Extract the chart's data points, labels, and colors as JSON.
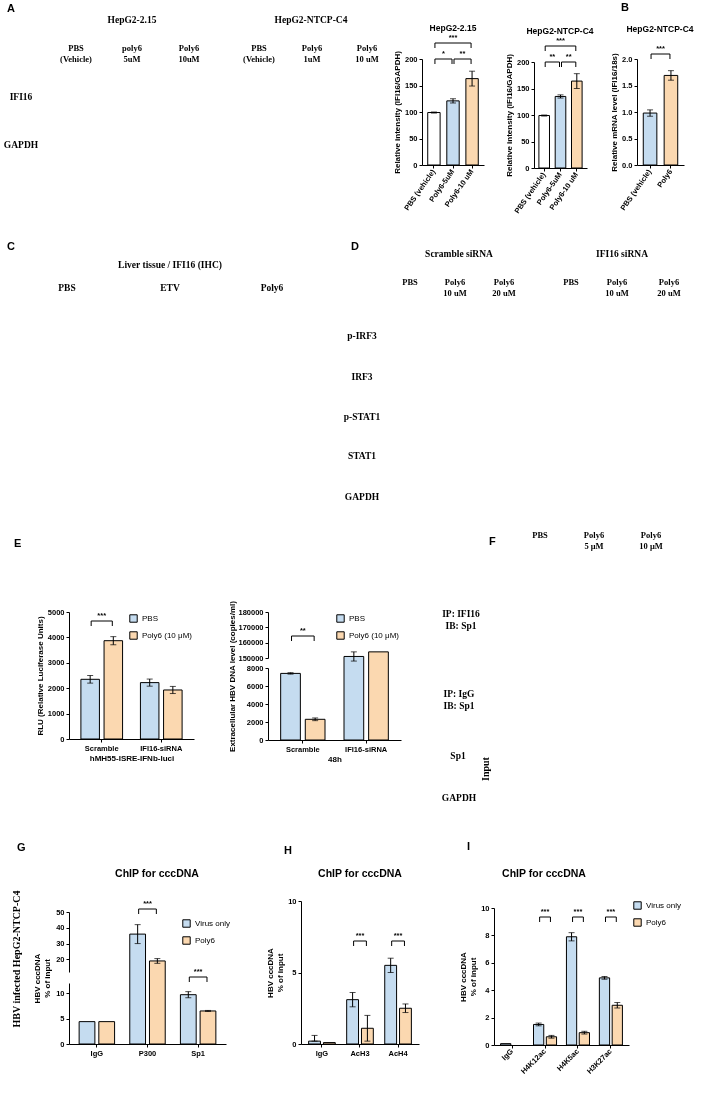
{
  "chart_data": [
    {
      "type": "other",
      "annotations": [
        "A",
        "HepG2-2.15",
        "HepG2-NTCP-C4",
        "PBS\n(Vehicle)",
        "poly6\n5uM",
        "Poly6\n10uM",
        "PBS\n(Vehicle)",
        "Poly6\n1uM",
        "Poly6\n10 uM",
        "IFI16",
        "GAPDH"
      ]
    },
    {
      "type": "bar",
      "title": "HepG2-2.15",
      "ylabel": "Relative intensity (IFI16/GAPDH)",
      "categories": [
        "PBS (vehicle)",
        "Poly6-5uM",
        "Poly6-10 uM"
      ],
      "values": [
        99,
        121,
        163
      ],
      "colors": [
        "#ffffff",
        "#c5dcf0",
        "#fbd8b0"
      ],
      "errors": [
        1,
        4,
        14
      ],
      "ylim": [
        0,
        200
      ],
      "yticks": [
        0,
        50,
        100,
        150,
        200
      ],
      "annotations": [
        "***",
        "*",
        "**"
      ]
    },
    {
      "type": "bar",
      "title": "HepG2-NTCP-C4",
      "ylabel": "Relative intensity (IFI16/GAPDH)",
      "categories": [
        "PBS (vehicle)",
        "Poly6-5uM",
        "Poly6-10 uM"
      ],
      "values": [
        99,
        135,
        164
      ],
      "colors": [
        "#ffffff",
        "#c5dcf0",
        "#fbd8b0"
      ],
      "errors": [
        1,
        3,
        14
      ],
      "ylim": [
        0,
        200
      ],
      "yticks": [
        0,
        50,
        100,
        150,
        200
      ],
      "annotations": [
        "***",
        "**",
        "**"
      ]
    },
    {
      "type": "bar",
      "title": "HepG2-NTCP-C4",
      "ylabel": "Relative mRNA level (IFI16/18s)",
      "categories": [
        "PBS (vehicle)",
        "Poly6"
      ],
      "values": [
        0.98,
        1.69
      ],
      "colors": [
        "#c5dcf0",
        "#fbd8b0"
      ],
      "errors": [
        0.06,
        0.09
      ],
      "ylim": [
        0,
        2
      ],
      "yticks": [
        {
          "value": 0,
          "label": "0.0"
        },
        0.5,
        {
          "value": 1,
          "label": "1.0"
        },
        1.5,
        {
          "value": 2,
          "label": "2.0"
        }
      ],
      "annotations": [
        "B",
        "***"
      ]
    },
    {
      "type": "other",
      "title": "Liver tissue / IFI16 (IHC)",
      "annotations": [
        "C",
        "PBS",
        "ETV",
        "Poly6"
      ]
    },
    {
      "type": "other",
      "annotations": [
        "D",
        "Scramble siRNA",
        "IFI16 siRNA",
        "PBS",
        "Poly6\n10 uM",
        "Poly6\n20 uM",
        "PBS",
        "Poly6\n10 uM",
        "Poly6\n20 uM",
        "p-IRF3",
        "IRF3",
        "p-STAT1",
        "STAT1",
        "GAPDH"
      ]
    },
    {
      "type": "bar",
      "ylabel": "RLU (Relative Luciferase Units)",
      "xlabel": "hMH55-ISRE-IFNb-luci",
      "categories": [
        "Scramble",
        "IFI16-siRNA"
      ],
      "series": [
        {
          "name": "PBS",
          "color": "#c5dcf0",
          "values": [
            2350,
            2220
          ],
          "errors": [
            150,
            140
          ]
        },
        {
          "name": "Poly6 (10 μM)",
          "color": "#fbd8b0",
          "values": [
            3870,
            1930
          ],
          "errors": [
            160,
            140
          ]
        }
      ],
      "ylim": [
        0,
        5000
      ],
      "yticks": [
        0,
        1000,
        2000,
        3000,
        4000,
        5000
      ],
      "legend": "top right",
      "annotations": [
        "E",
        "***"
      ]
    },
    {
      "type": "bar",
      "categories": [
        "Scramble",
        "IFI16-siRNA"
      ],
      "series": [
        {
          "name": "PBS",
          "color": "#c5dcf0",
          "values": [
            null,
            151000
          ],
          "errors": [
            null,
            3000
          ]
        },
        {
          "name": "Poly6 (10 μM)",
          "color": "#fbd8b0",
          "values": [
            null,
            154000
          ]
        }
      ],
      "ylim": [
        150000,
        180000
      ],
      "yticks": [
        150000,
        160000,
        170000,
        180000
      ],
      "tick_labels": "y",
      "legend": "top right",
      "annotations": [
        "**"
      ]
    },
    {
      "type": "bar",
      "ylabel": "Extracellular HBV DNA level (copies/ml)",
      "xlabel": "48h",
      "categories": [
        "Scramble",
        "IFI16-siRNA"
      ],
      "series": [
        {
          "color": "#c5dcf0",
          "values": [
            7400,
            null
          ],
          "errors": [
            80,
            null
          ]
        },
        {
          "color": "#fbd8b0",
          "values": [
            2300,
            null
          ],
          "errors": [
            150,
            null
          ]
        }
      ],
      "ylim": [
        0,
        8000
      ],
      "yticks": [
        0,
        2000,
        4000,
        6000,
        8000
      ]
    },
    {
      "type": "other",
      "annotations": [
        "F",
        "PBS",
        "Poly6\n5 μM",
        "Poly6\n10 μM",
        "IP: IFI16\nIB: Sp1",
        "IP: IgG\nIB: Sp1",
        "Sp1",
        "Input",
        "GAPDH"
      ]
    },
    {
      "type": "bar",
      "title": "ChIP for cccDNA",
      "categories": [
        "IgG",
        "P300",
        "Sp1"
      ],
      "series": [
        {
          "name": "Virus only",
          "color": "#c5dcf0",
          "values": [
            null,
            36,
            null
          ],
          "errors": [
            null,
            6,
            null
          ]
        },
        {
          "name": "Poly6",
          "color": "#fbd8b0",
          "values": [
            null,
            19,
            null
          ],
          "errors": [
            null,
            1.5,
            null
          ]
        }
      ],
      "ylim": [
        12,
        50
      ],
      "yticks": [
        20,
        30,
        40,
        50
      ],
      "tick_labels": "y",
      "legend": "top right",
      "annotations": [
        "G",
        "HBV infected HepG2-NTCP-C4",
        "***"
      ]
    },
    {
      "type": "bar",
      "ylabel": "HBV cccDNA\n% of input",
      "categories": [
        "IgG",
        "P300",
        "Sp1"
      ],
      "series": [
        {
          "color": "#c5dcf0",
          "values": [
            4.4,
            null,
            9.7
          ],
          "errors": [
            null,
            null,
            0.6
          ]
        },
        {
          "color": "#fbd8b0",
          "values": [
            4.4,
            null,
            6.5
          ],
          "errors": [
            null,
            null,
            0.1
          ]
        }
      ],
      "ylim": [
        0,
        12
      ],
      "yticks": [
        0,
        5,
        10
      ],
      "annotations": [
        "***"
      ]
    },
    {
      "type": "bar",
      "title": "ChIP for cccDNA",
      "ylabel": "HBV cccDNA\n% of input",
      "categories": [
        "IgG",
        "AcH3",
        "AcH4"
      ],
      "series": [
        {
          "color": "#c5dcf0",
          "values": [
            0.2,
            3.1,
            5.5
          ],
          "errors": [
            [
              0.2,
              0.6
            ],
            0.5,
            0.5
          ]
        },
        {
          "color": "#fbd8b0",
          "values": [
            0.1,
            1.1,
            2.5
          ],
          "errors": [
            null,
            0.9,
            0.3
          ]
        }
      ],
      "ylim": [
        0,
        10
      ],
      "yticks": [
        0,
        5,
        10
      ],
      "annotations": [
        "H",
        "***",
        "***"
      ]
    },
    {
      "type": "bar",
      "title": "ChIP for cccDNA",
      "ylabel": "HBV cccDNA\n% of input",
      "categories": [
        "IgG",
        "H4K12ac",
        "H4K5ac",
        "H3K27ac"
      ],
      "series": [
        {
          "name": "Virus only",
          "color": "#c5dcf0",
          "values": [
            0.1,
            1.5,
            7.9,
            4.9
          ],
          "errors": [
            null,
            0.1,
            0.3,
            0.1
          ]
        },
        {
          "name": "Poly6",
          "color": "#fbd8b0",
          "values": [
            null,
            0.6,
            0.9,
            2.9
          ],
          "errors": [
            null,
            0.1,
            0.1,
            0.2
          ]
        }
      ],
      "ylim": [
        0,
        10
      ],
      "yticks": [
        0,
        2,
        4,
        6,
        8,
        10
      ],
      "legend": "right",
      "annotations": [
        "I",
        "***",
        "***",
        "***"
      ]
    }
  ]
}
